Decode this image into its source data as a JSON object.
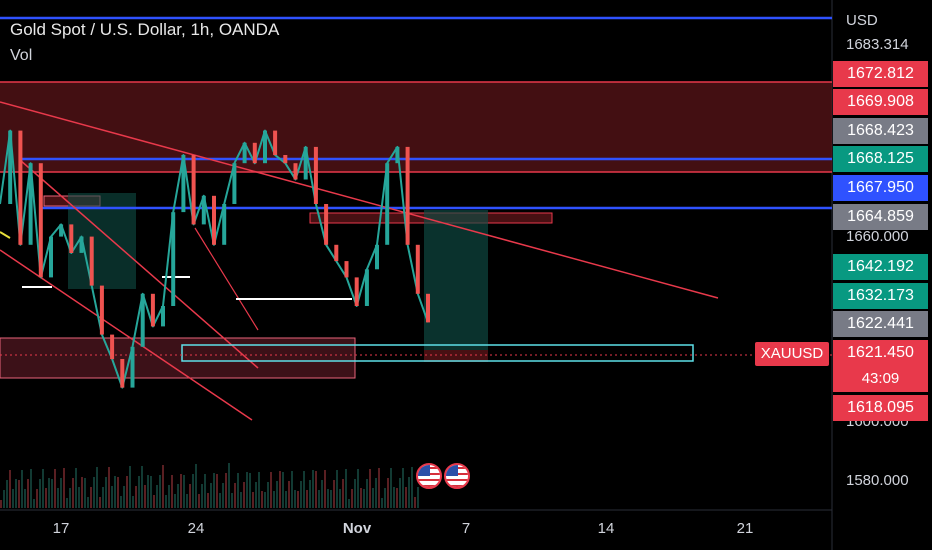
{
  "header": {
    "title": "Gold Spot / U.S. Dollar, 1h, OANDA",
    "indicator": "Vol"
  },
  "axis": {
    "currency": "USD"
  },
  "symbol_label": "XAUUSD",
  "countdown": "43:09",
  "colors": {
    "accent_red": "#e8394b",
    "blue_line": "#2f52ff",
    "green": "#089981",
    "gray_badge": "#787b86",
    "cyan_box": "#5ee0e8",
    "zone_red": "#5a1418"
  },
  "icons": [
    "us-flag-icon",
    "us-flag-icon"
  ],
  "chart_data": {
    "type": "line",
    "x_ticks": [
      "17",
      "24",
      "Nov",
      "7",
      "14",
      "21"
    ],
    "y_ticks": [
      "1683.314",
      "1660.000",
      "1600.000",
      "1580.000"
    ],
    "price_labels": [
      {
        "value": "1672.812",
        "style": "red"
      },
      {
        "value": "1669.908",
        "style": "red"
      },
      {
        "value": "1668.423",
        "style": "gray"
      },
      {
        "value": "1668.125",
        "style": "green"
      },
      {
        "value": "1667.950",
        "style": "blue"
      },
      {
        "value": "1664.859",
        "style": "gray"
      },
      {
        "value": "1642.192",
        "style": "green"
      },
      {
        "value": "1632.173",
        "style": "green"
      },
      {
        "value": "1622.441",
        "style": "gray"
      },
      {
        "value": "1621.450",
        "style": "red"
      },
      {
        "value": "1618.095",
        "style": "red"
      }
    ],
    "close_path": [
      1650,
      1668,
      1640,
      1660,
      1632,
      1642,
      1645,
      1638,
      1642,
      1630,
      1618,
      1612,
      1605,
      1615,
      1628,
      1620,
      1625,
      1648,
      1662,
      1645,
      1652,
      1640,
      1650,
      1660,
      1665,
      1660,
      1668,
      1662,
      1660,
      1656,
      1664,
      1650,
      1640,
      1636,
      1632,
      1625,
      1634,
      1640,
      1660,
      1664,
      1640,
      1628,
      1621
    ],
    "ylim": [
      1575,
      1700
    ]
  }
}
